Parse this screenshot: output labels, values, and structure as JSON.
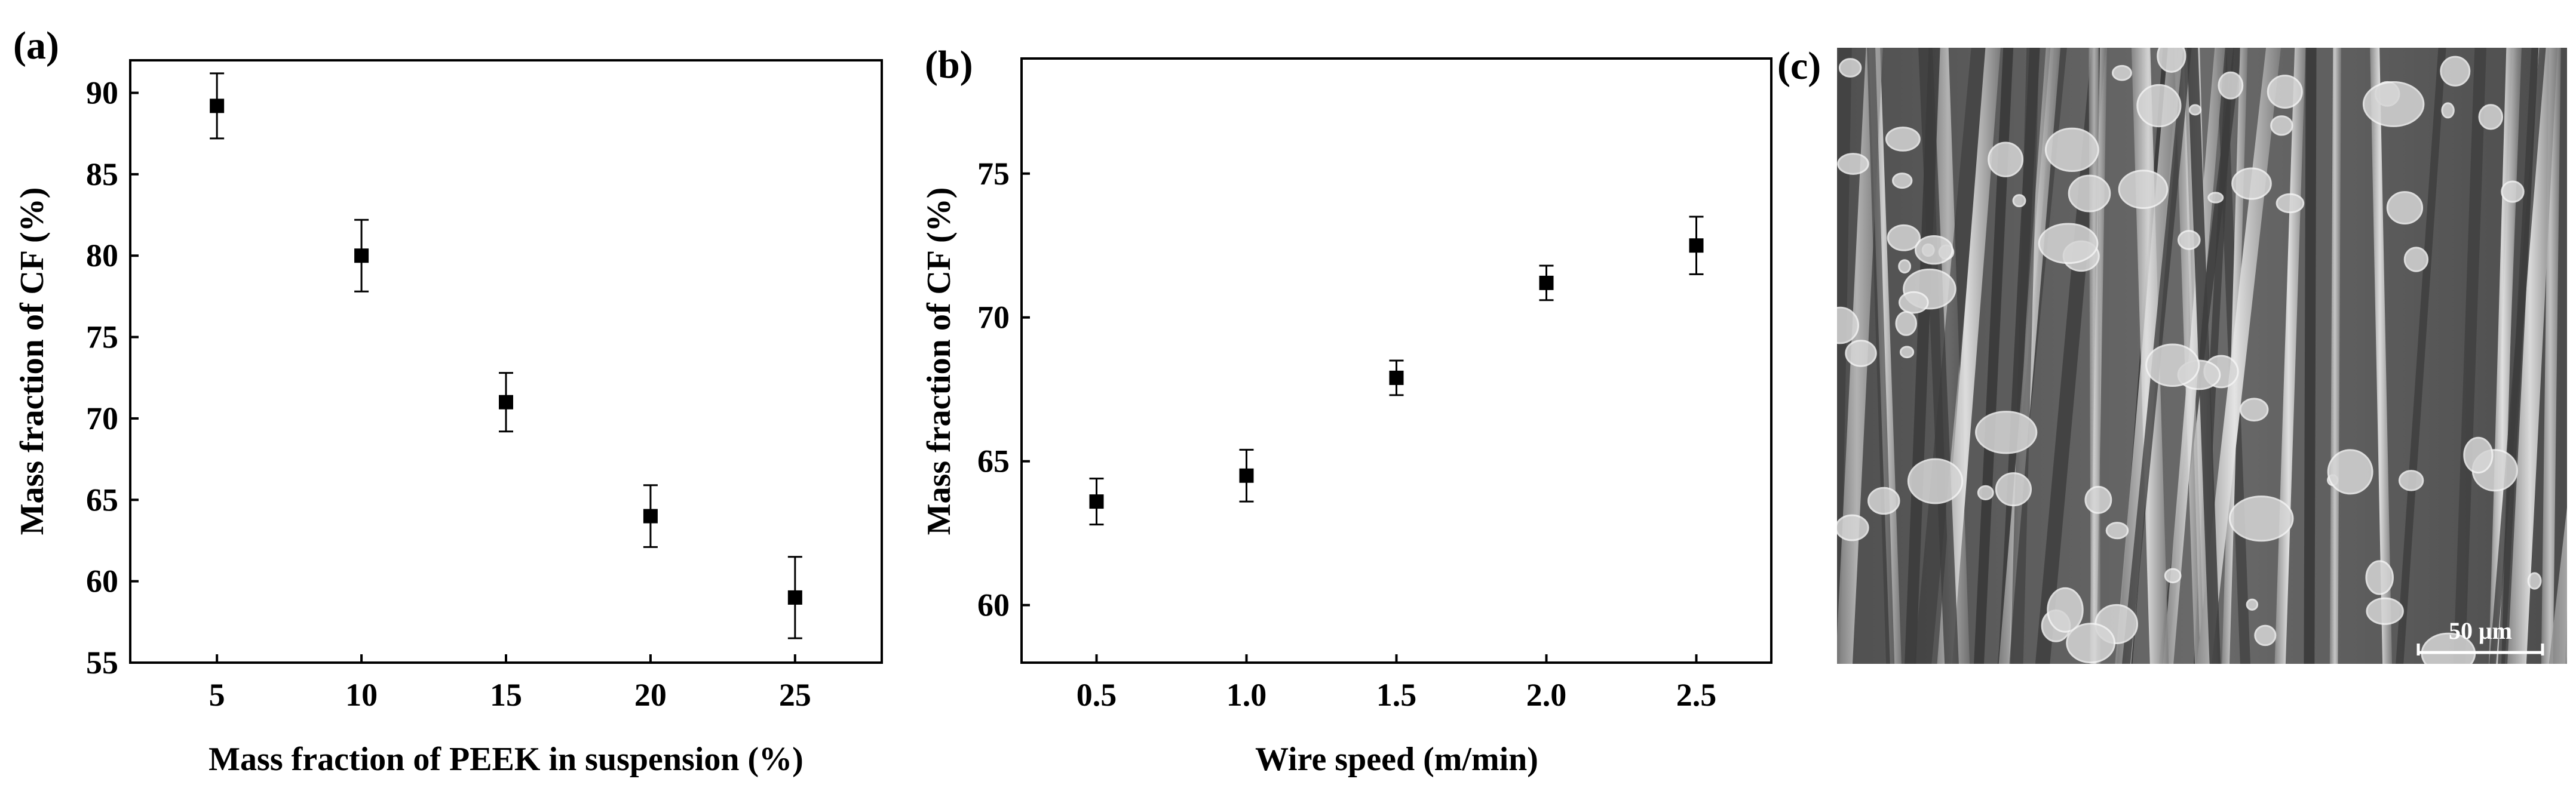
{
  "panels": {
    "a": {
      "letter": "(a)"
    },
    "b": {
      "letter": "(b)"
    },
    "c": {
      "letter": "(c)",
      "scale_bar_label": "50 μm"
    }
  },
  "chart_data": [
    {
      "panel": "(a)",
      "type": "scatter",
      "xlabel": "Mass fraction of PEEK in suspension (%)",
      "ylabel": "Mass fraction of CF (%)",
      "xlim": [
        2,
        28
      ],
      "ylim": [
        55,
        92
      ],
      "xticks": [
        5,
        10,
        15,
        20,
        25
      ],
      "yticks": [
        55,
        60,
        65,
        70,
        75,
        80,
        85,
        90
      ],
      "grid": false,
      "series": [
        {
          "x": [
            5,
            10,
            15,
            20,
            25
          ],
          "y": [
            89.2,
            80.0,
            71.0,
            64.0,
            59.0
          ],
          "error": [
            2.0,
            2.2,
            1.8,
            1.9,
            2.5
          ]
        }
      ]
    },
    {
      "panel": "(b)",
      "type": "scatter",
      "xlabel": "Wire speed (m/min)",
      "ylabel": "Mass fraction of CF (%)",
      "xlim": [
        0.25,
        2.75
      ],
      "ylim": [
        58,
        79
      ],
      "xticks": [
        "0.5",
        "1.0",
        "1.5",
        "2.0",
        "2.5"
      ],
      "yticks": [
        60,
        65,
        70,
        75
      ],
      "grid": false,
      "series": [
        {
          "x": [
            0.5,
            1.0,
            1.5,
            2.0,
            2.5
          ],
          "y": [
            63.6,
            64.5,
            67.9,
            71.2,
            72.5
          ],
          "error": [
            0.8,
            0.9,
            0.6,
            0.6,
            1.0
          ]
        }
      ]
    }
  ]
}
